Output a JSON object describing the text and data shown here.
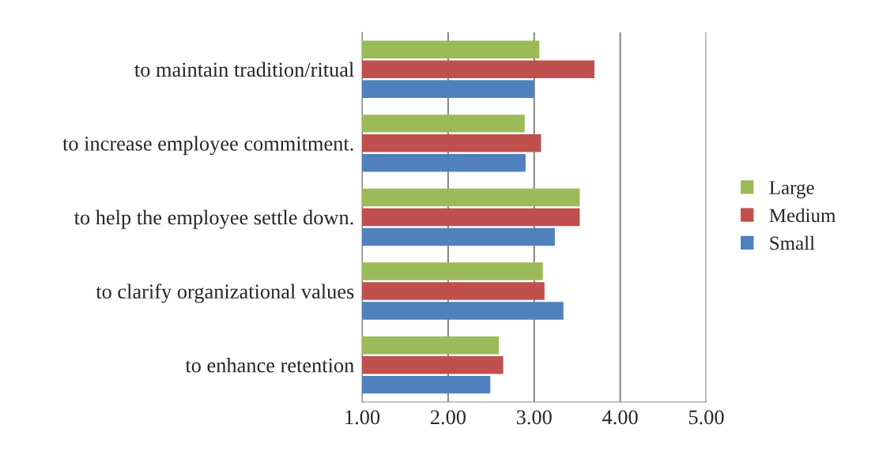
{
  "chart_data": {
    "type": "bar",
    "orientation": "horizontal",
    "categories": [
      "to maintain tradition/ritual",
      "to increase employee commitment.",
      "to help the employee settle down.",
      "to clarify organizational values",
      "to enhance retention"
    ],
    "series": [
      {
        "name": "Large",
        "color": "#9bbb59",
        "values": [
          3.06,
          2.89,
          3.53,
          3.1,
          2.59
        ]
      },
      {
        "name": "Medium",
        "color": "#c0504d",
        "values": [
          3.7,
          3.08,
          3.53,
          3.12,
          2.64
        ]
      },
      {
        "name": "Small",
        "color": "#4f81bd",
        "values": [
          3.0,
          2.9,
          3.24,
          3.34,
          2.49
        ]
      }
    ],
    "xlim": [
      1,
      5
    ],
    "xticks": [
      {
        "value": 1,
        "label": "1.00"
      },
      {
        "value": 2,
        "label": "2.00"
      },
      {
        "value": 3,
        "label": "3.00"
      },
      {
        "value": 4,
        "label": "4.00"
      },
      {
        "value": 5,
        "label": "5.00"
      }
    ],
    "grid": "x",
    "legend": "right"
  }
}
